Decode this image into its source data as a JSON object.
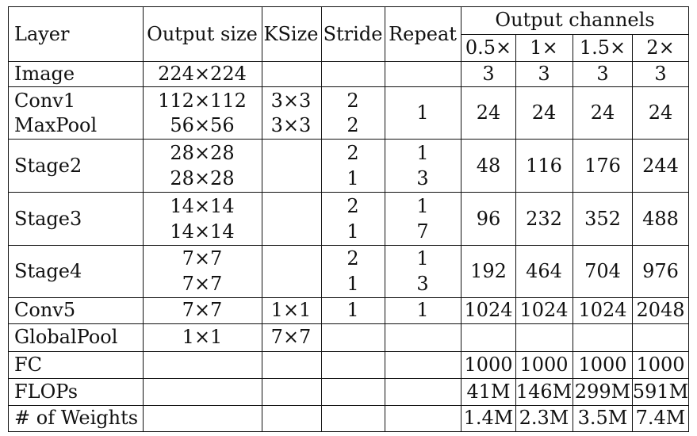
{
  "header": {
    "layer": "Layer",
    "output_size": "Output size",
    "ksize": "KSize",
    "stride": "Stride",
    "repeat": "Repeat",
    "output_channels": "Output channels",
    "widths": [
      "0.5×",
      "1×",
      "1.5×",
      "2×"
    ]
  },
  "rows": {
    "image": {
      "layer": "Image",
      "size": "224×224",
      "ch": [
        "3",
        "3",
        "3",
        "3"
      ]
    },
    "conv1": {
      "layer": "Conv1",
      "size": "112×112",
      "k": "3×3",
      "s": "2"
    },
    "maxpool": {
      "layer": "MaxPool",
      "size": "56×56",
      "k": "3×3",
      "s": "2",
      "r": "1",
      "ch": [
        "24",
        "24",
        "24",
        "24"
      ]
    },
    "stage2": {
      "layer": "Stage2",
      "size_a": "28×28",
      "size_b": "28×28",
      "s_a": "2",
      "s_b": "1",
      "r_a": "1",
      "r_b": "3",
      "ch": [
        "48",
        "116",
        "176",
        "244"
      ]
    },
    "stage3": {
      "layer": "Stage3",
      "size_a": "14×14",
      "size_b": "14×14",
      "s_a": "2",
      "s_b": "1",
      "r_a": "1",
      "r_b": "7",
      "ch": [
        "96",
        "232",
        "352",
        "488"
      ]
    },
    "stage4": {
      "layer": "Stage4",
      "size_a": "7×7",
      "size_b": "7×7",
      "s_a": "2",
      "s_b": "1",
      "r_a": "1",
      "r_b": "3",
      "ch": [
        "192",
        "464",
        "704",
        "976"
      ]
    },
    "conv5": {
      "layer": "Conv5",
      "size": "7×7",
      "k": "1×1",
      "s": "1",
      "r": "1",
      "ch": [
        "1024",
        "1024",
        "1024",
        "2048"
      ]
    },
    "globalpool": {
      "layer": "GlobalPool",
      "size": "1×1",
      "k": "7×7"
    },
    "fc": {
      "layer": "FC",
      "ch": [
        "1000",
        "1000",
        "1000",
        "1000"
      ]
    },
    "flops": {
      "layer": "FLOPs",
      "ch": [
        "41M",
        "146M",
        "299M",
        "591M"
      ]
    },
    "weights": {
      "layer": "# of Weights",
      "ch": [
        "1.4M",
        "2.3M",
        "3.5M",
        "7.4M"
      ]
    }
  }
}
